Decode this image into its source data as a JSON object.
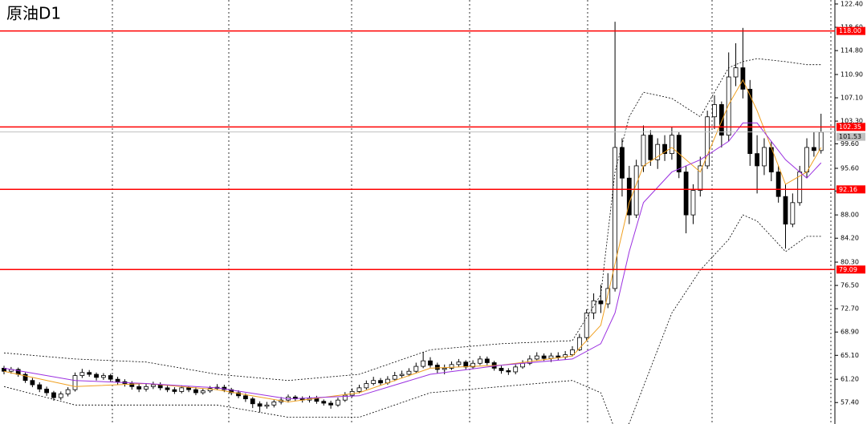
{
  "chart_data": {
    "type": "candlestick",
    "title": "原油D1",
    "ylim": [
      53.9,
      123.05
    ],
    "yticks": [
      {
        "value": 122.4,
        "label": "122.40"
      },
      {
        "value": 118.6,
        "label": "118.60"
      },
      {
        "value": 114.8,
        "label": "114.80"
      },
      {
        "value": 110.9,
        "label": "110.90"
      },
      {
        "value": 107.1,
        "label": "107.10"
      },
      {
        "value": 103.3,
        "label": "103.30"
      },
      {
        "value": 99.6,
        "label": "99.60"
      },
      {
        "value": 95.6,
        "label": "95.60"
      },
      {
        "value": 91.9,
        "label": "91.90"
      },
      {
        "value": 88,
        "label": "88.00"
      },
      {
        "value": 84.2,
        "label": "84.20"
      },
      {
        "value": 80.3,
        "label": "80.30"
      },
      {
        "value": 76.5,
        "label": "76.50"
      },
      {
        "value": 72.7,
        "label": "72.70"
      },
      {
        "value": 68.9,
        "label": "68.90"
      },
      {
        "value": 65.1,
        "label": "65.10"
      },
      {
        "value": 61.2,
        "label": "61.20"
      },
      {
        "value": 57.4,
        "label": "57.40"
      }
    ],
    "up_color": "#ffffff",
    "down_color": "#000000",
    "candles": {
      "open": [
        63.0,
        62.5,
        62.8,
        62.0,
        61.0,
        60.3,
        59.6,
        59.0,
        58.2,
        58.8,
        59.5,
        61.8,
        62.3,
        62.0,
        61.5,
        61.8,
        61.2,
        60.8,
        60.5,
        60.0,
        59.6,
        60.0,
        60.3,
        59.8,
        59.5,
        59.2,
        59.8,
        59.5,
        59.0,
        59.3,
        59.7,
        59.9,
        59.5,
        59.0,
        58.5,
        58.0,
        57.2,
        56.8,
        57.0,
        57.5,
        57.8,
        58.3,
        58.0,
        57.8,
        58.1,
        57.6,
        57.3,
        57.0,
        57.8,
        58.6,
        59.2,
        59.8,
        60.5,
        61.0,
        60.6,
        61.2,
        61.8,
        62.0,
        62.5,
        63.3,
        64.2,
        63.5,
        62.8,
        63.0,
        63.6,
        64.0,
        63.2,
        63.8,
        64.5,
        63.9,
        63.0,
        62.6,
        62.4,
        63.2,
        63.8,
        64.5,
        65.0,
        64.6,
        65.0,
        64.8,
        65.2,
        66.0,
        68.0,
        72.0,
        74.0,
        73.5,
        76.0,
        99.0,
        94.0,
        88.0,
        96.0,
        101.0,
        97.0,
        99.5,
        98.0,
        101.0,
        95.0,
        88.0,
        92.0,
        96.0,
        104.0,
        106.0,
        101.0,
        110.5,
        112.0,
        108.5,
        98.0,
        96.0,
        99.0,
        95.0,
        91.0,
        86.5,
        90.0,
        95.0,
        99.0,
        98.5
      ],
      "high": [
        63.4,
        63.2,
        63.1,
        62.3,
        61.4,
        60.7,
        60.0,
        59.3,
        59.2,
        59.9,
        62.3,
        62.9,
        62.7,
        62.3,
        62.2,
        62.1,
        61.6,
        61.2,
        60.9,
        60.4,
        60.5,
        60.8,
        60.7,
        60.2,
        59.9,
        60.2,
        60.1,
        59.9,
        59.7,
        60.1,
        60.4,
        60.3,
        59.8,
        59.4,
        58.9,
        58.3,
        57.6,
        57.5,
        57.9,
        58.3,
        58.7,
        58.6,
        58.4,
        58.5,
        58.5,
        57.9,
        57.7,
        58.2,
        59.1,
        59.7,
        60.3,
        61.0,
        61.6,
        61.4,
        61.7,
        62.4,
        62.6,
        63.0,
        63.9,
        65.6,
        64.8,
        63.9,
        63.6,
        64.1,
        64.5,
        64.3,
        64.3,
        65.0,
        64.9,
        64.2,
        63.4,
        63.0,
        63.6,
        64.3,
        65.1,
        65.6,
        65.4,
        65.5,
        65.6,
        65.8,
        66.6,
        68.6,
        72.6,
        75.2,
        76.6,
        78.5,
        119.5,
        100.5,
        96.0,
        97.0,
        102.6,
        101.8,
        100.5,
        101.0,
        102.4,
        101.5,
        96.0,
        93.0,
        97.5,
        105.0,
        107.5,
        106.5,
        114.5,
        116.0,
        118.5,
        110.0,
        101.0,
        100.5,
        100.0,
        96.0,
        93.0,
        91.5,
        96.0,
        100.5,
        101.5,
        104.5
      ],
      "low": [
        62.0,
        62.1,
        61.6,
        60.6,
        59.9,
        59.1,
        58.5,
        57.7,
        57.8,
        58.4,
        59.2,
        61.4,
        61.6,
        61.0,
        61.1,
        60.8,
        60.3,
        60.0,
        59.5,
        59.1,
        59.2,
        59.6,
        59.4,
        59.1,
        58.8,
        58.9,
        59.1,
        58.6,
        58.7,
        59.0,
        59.4,
        59.1,
        58.6,
        58.1,
        57.5,
        56.5,
        55.8,
        56.4,
        56.6,
        57.1,
        57.4,
        57.6,
        57.4,
        57.4,
        57.2,
        56.9,
        56.4,
        56.7,
        57.5,
        58.3,
        58.9,
        59.5,
        60.2,
        60.2,
        60.3,
        60.9,
        61.4,
        61.7,
        62.2,
        63.0,
        63.1,
        62.2,
        62.0,
        62.7,
        63.2,
        62.8,
        62.9,
        63.5,
        63.5,
        62.6,
        62.1,
        61.9,
        62.0,
        62.9,
        63.5,
        64.2,
        64.2,
        64.0,
        64.3,
        64.4,
        64.9,
        65.8,
        67.5,
        71.0,
        72.0,
        72.8,
        75.5,
        91.0,
        86.5,
        87.5,
        95.0,
        96.0,
        95.5,
        96.8,
        97.0,
        94.0,
        85.0,
        86.5,
        91.0,
        95.5,
        102.0,
        99.0,
        100.0,
        109.0,
        107.0,
        96.0,
        91.5,
        94.5,
        93.5,
        90.0,
        82.5,
        86.0,
        89.5,
        94.0,
        97.5,
        98.0
      ],
      "close": [
        62.5,
        62.8,
        62.0,
        61.0,
        60.3,
        59.6,
        59.0,
        58.2,
        58.8,
        59.5,
        61.8,
        62.3,
        62.0,
        61.5,
        61.8,
        61.2,
        60.8,
        60.5,
        60.0,
        59.6,
        60.0,
        60.3,
        59.8,
        59.5,
        59.2,
        59.8,
        59.5,
        59.0,
        59.3,
        59.7,
        59.9,
        59.5,
        59.0,
        58.5,
        58.0,
        57.2,
        56.8,
        57.0,
        57.5,
        57.8,
        58.3,
        58.0,
        57.8,
        58.1,
        57.6,
        57.3,
        57.0,
        57.8,
        58.6,
        59.2,
        59.8,
        60.5,
        61.0,
        60.6,
        61.2,
        61.8,
        62.0,
        62.5,
        63.3,
        64.2,
        63.5,
        62.8,
        63.0,
        63.6,
        64.0,
        63.2,
        63.8,
        64.5,
        63.9,
        63.0,
        62.6,
        62.4,
        63.2,
        63.8,
        64.5,
        65.0,
        64.6,
        65.0,
        64.8,
        65.2,
        66.0,
        68.0,
        72.0,
        74.0,
        73.5,
        76.0,
        99.0,
        94.0,
        88.0,
        96.0,
        101.0,
        97.0,
        99.5,
        98.0,
        101.0,
        95.0,
        88.0,
        92.0,
        96.0,
        104.0,
        106.0,
        101.0,
        110.5,
        112.0,
        108.5,
        98.0,
        96.0,
        99.0,
        95.0,
        91.0,
        86.5,
        90.0,
        95.0,
        99.0,
        98.5,
        101.5
      ]
    },
    "indicators": {
      "x": [
        0,
        10,
        20,
        30,
        40,
        50,
        60,
        70,
        80,
        84,
        86,
        88,
        90,
        94,
        98,
        102,
        104,
        106,
        110,
        113,
        115
      ],
      "series": [
        {
          "color": "#f0a020",
          "dashed": false,
          "values": [
            62.5,
            60,
            60.5,
            59.5,
            57.5,
            59,
            63,
            63.5,
            65,
            70,
            80,
            90,
            96,
            99,
            95,
            106,
            110,
            105,
            93,
            95,
            99
          ]
        },
        {
          "color": "#9b30e0",
          "dashed": false,
          "values": [
            63,
            61,
            60.5,
            59.8,
            58,
            58.5,
            62,
            63.5,
            64.5,
            67,
            72,
            82,
            90,
            95,
            97,
            100,
            103,
            103,
            97,
            94,
            96.5
          ]
        },
        {
          "color": "#000000",
          "dashed": true,
          "values": [
            65.5,
            64.5,
            64,
            62,
            61,
            62,
            66,
            67,
            67.5,
            75,
            95,
            104,
            108,
            107,
            104,
            112,
            113,
            113.5,
            113,
            112.5,
            112.5
          ]
        },
        {
          "color": "#000000",
          "dashed": true,
          "values": [
            60,
            57,
            57,
            57,
            55,
            55,
            59,
            60,
            61,
            59,
            53,
            54,
            60,
            72,
            79,
            84,
            88,
            87,
            82,
            84.5,
            84.5
          ]
        }
      ]
    },
    "levels": {
      "color": "#ff0000",
      "values": [
        118,
        102.35,
        92.16,
        79.09
      ],
      "value_labels": [
        "118.00",
        "102.35",
        "92.16",
        "79.09"
      ]
    },
    "last_price": {
      "color": "#c0c0c0",
      "value": 101.53,
      "value_label": "101.53"
    }
  }
}
